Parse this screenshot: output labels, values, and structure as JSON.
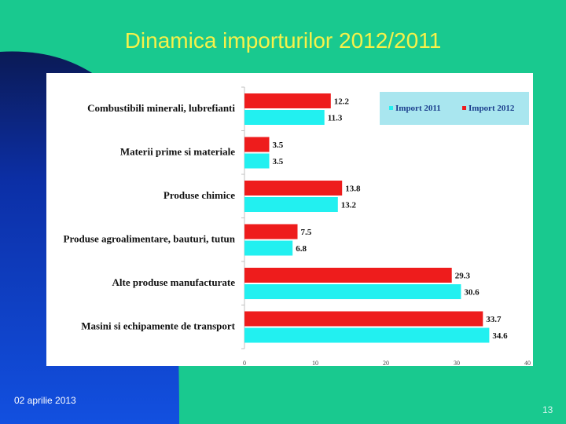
{
  "slide": {
    "title": "Dinamica importurilor 2012/2011",
    "footer_date": "02 aprilie 2013",
    "slide_number": "13"
  },
  "colors": {
    "background_green": "#19c98f",
    "background_blue": "#0f3fd0",
    "title_yellow": "#f6f14a",
    "import_2011": "#22f0f0",
    "import_2012": "#ee1c1c",
    "legend_box": "#a9e6ef"
  },
  "chart_data": {
    "type": "bar",
    "orientation": "horizontal",
    "categories": [
      "Combustibili minerali, lubrefianti",
      "Materii prime si materiale",
      "Produse chimice",
      "Produse agroalimentare, bauturi, tutun",
      "Alte produse manufacturate",
      "Masini si echipamente de transport"
    ],
    "series": [
      {
        "name": "Import 2012",
        "values": [
          12.2,
          3.5,
          13.8,
          7.5,
          29.3,
          33.7
        ]
      },
      {
        "name": "Import 2011",
        "values": [
          11.3,
          3.5,
          13.2,
          6.8,
          30.6,
          34.6
        ]
      }
    ],
    "legend_order": [
      "Import 2011",
      "Import 2012"
    ],
    "legend_position": "top-right",
    "xlim": [
      0,
      40
    ],
    "xticks": [
      "0",
      "10",
      "20",
      "30",
      "40"
    ],
    "grid": false
  }
}
